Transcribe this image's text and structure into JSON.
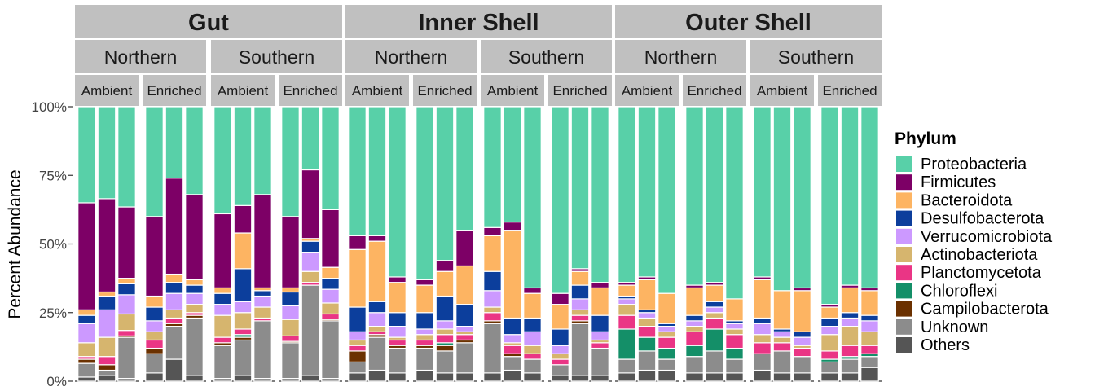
{
  "chart_data": {
    "type": "bar",
    "stacked": true,
    "ylabel": "Percent Abundance",
    "xlabel": "",
    "ylim": [
      0,
      100
    ],
    "yticks": [
      "0%",
      "25%",
      "50%",
      "75%",
      "100%"
    ],
    "legend": {
      "title": "Phylum",
      "placement": "right",
      "entries": [
        "Proteobacteria",
        "Firmicutes",
        "Bacteroidota",
        "Desulfobacterota",
        "Verrucomicrobiota",
        "Actinobacteriota",
        "Planctomycetota",
        "Chloroflexi",
        "Campilobacterota",
        "Unknown",
        "Others"
      ]
    },
    "colors": {
      "Proteobacteria": "#58d0a8",
      "Firmicutes": "#7d0066",
      "Bacteroidota": "#fdb462",
      "Desulfobacterota": "#0c3e9c",
      "Verrucomicrobiota": "#cc99ff",
      "Actinobacteriota": "#d6b56e",
      "Planctomycetota": "#ea3585",
      "Chloroflexi": "#148f68",
      "Campilobacterota": "#6b3100",
      "Unknown": "#8c8c8c",
      "Others": "#555555"
    },
    "stack_order": [
      "Others",
      "Unknown",
      "Campilobacterota",
      "Chloroflexi",
      "Planctomycetota",
      "Actinobacteriota",
      "Verrucomicrobiota",
      "Desulfobacterota",
      "Bacteroidota",
      "Firmicutes",
      "Proteobacteria"
    ],
    "panels": [
      {
        "tissue": "Gut",
        "site": "Northern",
        "treatment": "Ambient",
        "bars": [
          {
            "Others": 1.5,
            "Unknown": 5,
            "Campilobacterota": 1.5,
            "Chloroflexi": 0,
            "Planctomycetota": 1,
            "Actinobacteriota": 5,
            "Verrucomicrobiota": 7,
            "Desulfobacterota": 3,
            "Bacteroidota": 2,
            "Firmicutes": 39,
            "Proteobacteria": 35
          },
          {
            "Others": 2,
            "Unknown": 2,
            "Campilobacterota": 2,
            "Chloroflexi": 0,
            "Planctomycetota": 3,
            "Actinobacteriota": 7,
            "Verrucomicrobiota": 10,
            "Desulfobacterota": 5,
            "Bacteroidota": 1.5,
            "Firmicutes": 34,
            "Proteobacteria": 33.5
          },
          {
            "Others": 1,
            "Unknown": 15,
            "Campilobacterota": 0.5,
            "Chloroflexi": 0,
            "Planctomycetota": 2,
            "Actinobacteriota": 6,
            "Verrucomicrobiota": 7,
            "Desulfobacterota": 4,
            "Bacteroidota": 2,
            "Firmicutes": 26,
            "Proteobacteria": 36.5
          }
        ]
      },
      {
        "tissue": "Gut",
        "site": "Northern",
        "treatment": "Enriched",
        "bars": [
          {
            "Others": 3,
            "Unknown": 7,
            "Campilobacterota": 2,
            "Chloroflexi": 0,
            "Planctomycetota": 3,
            "Actinobacteriota": 3,
            "Verrucomicrobiota": 4,
            "Desulfobacterota": 5,
            "Bacteroidota": 4,
            "Firmicutes": 29,
            "Proteobacteria": 40
          },
          {
            "Others": 8,
            "Unknown": 12,
            "Campilobacterota": 1,
            "Chloroflexi": 0,
            "Planctomycetota": 2,
            "Actinobacteriota": 3,
            "Verrucomicrobiota": 6,
            "Desulfobacterota": 4,
            "Bacteroidota": 3,
            "Firmicutes": 35,
            "Proteobacteria": 26
          },
          {
            "Others": 2,
            "Unknown": 21,
            "Campilobacterota": 1,
            "Chloroflexi": 0,
            "Planctomycetota": 1,
            "Actinobacteriota": 3,
            "Verrucomicrobiota": 4,
            "Desulfobacterota": 3,
            "Bacteroidota": 2,
            "Firmicutes": 31,
            "Proteobacteria": 32
          }
        ]
      },
      {
        "tissue": "Gut",
        "site": "Southern",
        "treatment": "Ambient",
        "bars": [
          {
            "Others": 1,
            "Unknown": 12,
            "Campilobacterota": 1,
            "Chloroflexi": 0,
            "Planctomycetota": 2,
            "Actinobacteriota": 8,
            "Verrucomicrobiota": 4,
            "Desulfobacterota": 4,
            "Bacteroidota": 2,
            "Firmicutes": 27,
            "Proteobacteria": 39
          },
          {
            "Others": 2,
            "Unknown": 13,
            "Campilobacterota": 1,
            "Chloroflexi": 1,
            "Planctomycetota": 2,
            "Actinobacteriota": 6,
            "Verrucomicrobiota": 4,
            "Desulfobacterota": 12,
            "Bacteroidota": 13,
            "Firmicutes": 10,
            "Proteobacteria": 36
          },
          {
            "Others": 1,
            "Unknown": 21,
            "Campilobacterota": 0,
            "Chloroflexi": 0,
            "Planctomycetota": 1,
            "Actinobacteriota": 4,
            "Verrucomicrobiota": 4,
            "Desulfobacterota": 2,
            "Bacteroidota": 1,
            "Firmicutes": 34,
            "Proteobacteria": 32
          }
        ]
      },
      {
        "tissue": "Gut",
        "site": "Southern",
        "treatment": "Enriched",
        "bars": [
          {
            "Others": 1,
            "Unknown": 13,
            "Campilobacterota": 0.5,
            "Chloroflexi": 0,
            "Planctomycetota": 2,
            "Actinobacteriota": 6,
            "Verrucomicrobiota": 5,
            "Desulfobacterota": 5,
            "Bacteroidota": 1.5,
            "Firmicutes": 26,
            "Proteobacteria": 40
          },
          {
            "Others": 2,
            "Unknown": 33,
            "Campilobacterota": 0,
            "Chloroflexi": 0,
            "Planctomycetota": 1,
            "Actinobacteriota": 4,
            "Verrucomicrobiota": 7,
            "Desulfobacterota": 4,
            "Bacteroidota": 1,
            "Firmicutes": 25,
            "Proteobacteria": 23
          },
          {
            "Others": 1,
            "Unknown": 21,
            "Campilobacterota": 0.5,
            "Chloroflexi": 0,
            "Planctomycetota": 2,
            "Actinobacteriota": 4,
            "Verrucomicrobiota": 5,
            "Desulfobacterota": 4,
            "Bacteroidota": 4,
            "Firmicutes": 21,
            "Proteobacteria": 37.5
          }
        ]
      },
      {
        "tissue": "Inner Shell",
        "site": "Northern",
        "treatment": "Ambient",
        "bars": [
          {
            "Others": 3,
            "Unknown": 4,
            "Campilobacterota": 4,
            "Chloroflexi": 0,
            "Planctomycetota": 2,
            "Actinobacteriota": 2,
            "Verrucomicrobiota": 3,
            "Desulfobacterota": 9,
            "Bacteroidota": 21,
            "Firmicutes": 5,
            "Proteobacteria": 47
          },
          {
            "Others": 4,
            "Unknown": 12,
            "Campilobacterota": 1,
            "Chloroflexi": 0,
            "Planctomycetota": 1,
            "Actinobacteriota": 2,
            "Verrucomicrobiota": 5,
            "Desulfobacterota": 4,
            "Bacteroidota": 22,
            "Firmicutes": 2,
            "Proteobacteria": 47
          },
          {
            "Others": 3,
            "Unknown": 9,
            "Campilobacterota": 1,
            "Chloroflexi": 0,
            "Planctomycetota": 2,
            "Actinobacteriota": 1,
            "Verrucomicrobiota": 4,
            "Desulfobacterota": 5,
            "Bacteroidota": 11,
            "Firmicutes": 2,
            "Proteobacteria": 62
          }
        ]
      },
      {
        "tissue": "Inner Shell",
        "site": "Northern",
        "treatment": "Enriched",
        "bars": [
          {
            "Others": 4,
            "Unknown": 8,
            "Campilobacterota": 1,
            "Chloroflexi": 0,
            "Planctomycetota": 2,
            "Actinobacteriota": 2,
            "Verrucomicrobiota": 2,
            "Desulfobacterota": 6,
            "Bacteroidota": 10,
            "Firmicutes": 2,
            "Proteobacteria": 63
          },
          {
            "Others": 3,
            "Unknown": 8,
            "Campilobacterota": 2,
            "Chloroflexi": 1,
            "Planctomycetota": 3,
            "Actinobacteriota": 2,
            "Verrucomicrobiota": 3,
            "Desulfobacterota": 9,
            "Bacteroidota": 9,
            "Firmicutes": 4,
            "Proteobacteria": 56
          },
          {
            "Others": 3,
            "Unknown": 11,
            "Campilobacterota": 1,
            "Chloroflexi": 0,
            "Planctomycetota": 2,
            "Actinobacteriota": 1,
            "Verrucomicrobiota": 2,
            "Desulfobacterota": 8,
            "Bacteroidota": 14,
            "Firmicutes": 13,
            "Proteobacteria": 45
          }
        ]
      },
      {
        "tissue": "Inner Shell",
        "site": "Southern",
        "treatment": "Ambient",
        "bars": [
          {
            "Others": 3,
            "Unknown": 18,
            "Campilobacterota": 1,
            "Chloroflexi": 0,
            "Planctomycetota": 3,
            "Actinobacteriota": 2,
            "Verrucomicrobiota": 6,
            "Desulfobacterota": 7,
            "Bacteroidota": 13,
            "Firmicutes": 3,
            "Proteobacteria": 44
          },
          {
            "Others": 4,
            "Unknown": 5,
            "Campilobacterota": 1,
            "Chloroflexi": 0,
            "Planctomycetota": 3,
            "Actinobacteriota": 1,
            "Verrucomicrobiota": 3,
            "Desulfobacterota": 6,
            "Bacteroidota": 32,
            "Firmicutes": 3,
            "Proteobacteria": 42
          },
          {
            "Others": 3,
            "Unknown": 5,
            "Campilobacterota": 0,
            "Chloroflexi": 0,
            "Planctomycetota": 2,
            "Actinobacteriota": 3,
            "Verrucomicrobiota": 5,
            "Desulfobacterota": 5,
            "Bacteroidota": 9,
            "Firmicutes": 2,
            "Proteobacteria": 66
          }
        ]
      },
      {
        "tissue": "Inner Shell",
        "site": "Southern",
        "treatment": "Enriched",
        "bars": [
          {
            "Others": 2,
            "Unknown": 4,
            "Campilobacterota": 0,
            "Chloroflexi": 0,
            "Planctomycetota": 2,
            "Actinobacteriota": 2,
            "Verrucomicrobiota": 3,
            "Desulfobacterota": 6,
            "Bacteroidota": 9,
            "Firmicutes": 4,
            "Proteobacteria": 68
          },
          {
            "Others": 2,
            "Unknown": 19,
            "Campilobacterota": 1,
            "Chloroflexi": 0,
            "Planctomycetota": 2,
            "Actinobacteriota": 2,
            "Verrucomicrobiota": 4,
            "Desulfobacterota": 5,
            "Bacteroidota": 5,
            "Firmicutes": 1,
            "Proteobacteria": 59
          },
          {
            "Others": 2,
            "Unknown": 10,
            "Campilobacterota": 0,
            "Chloroflexi": 0,
            "Planctomycetota": 2,
            "Actinobacteriota": 1,
            "Verrucomicrobiota": 3,
            "Desulfobacterota": 6,
            "Bacteroidota": 10,
            "Firmicutes": 2,
            "Proteobacteria": 64
          }
        ]
      },
      {
        "tissue": "Outer Shell",
        "site": "Northern",
        "treatment": "Ambient",
        "bars": [
          {
            "Others": 3,
            "Unknown": 5,
            "Campilobacterota": 0,
            "Chloroflexi": 11,
            "Planctomycetota": 5,
            "Actinobacteriota": 4,
            "Verrucomicrobiota": 2,
            "Desulfobacterota": 1,
            "Bacteroidota": 4,
            "Firmicutes": 1,
            "Proteobacteria": 64
          },
          {
            "Others": 4,
            "Unknown": 7,
            "Campilobacterota": 0,
            "Chloroflexi": 5,
            "Planctomycetota": 4,
            "Actinobacteriota": 3,
            "Verrucomicrobiota": 2,
            "Desulfobacterota": 1,
            "Bacteroidota": 11,
            "Firmicutes": 1,
            "Proteobacteria": 62
          },
          {
            "Others": 4,
            "Unknown": 4,
            "Campilobacterota": 0,
            "Chloroflexi": 4,
            "Planctomycetota": 4,
            "Actinobacteriota": 2,
            "Verrucomicrobiota": 2,
            "Desulfobacterota": 1,
            "Bacteroidota": 11,
            "Firmicutes": 0,
            "Proteobacteria": 68
          }
        ]
      },
      {
        "tissue": "Outer Shell",
        "site": "Northern",
        "treatment": "Enriched",
        "bars": [
          {
            "Others": 3,
            "Unknown": 6,
            "Campilobacterota": 0,
            "Chloroflexi": 4,
            "Planctomycetota": 5,
            "Actinobacteriota": 2,
            "Verrucomicrobiota": 2,
            "Desulfobacterota": 2,
            "Bacteroidota": 10,
            "Firmicutes": 1,
            "Proteobacteria": 65
          },
          {
            "Others": 3,
            "Unknown": 8,
            "Campilobacterota": 0,
            "Chloroflexi": 8,
            "Planctomycetota": 4,
            "Actinobacteriota": 2,
            "Verrucomicrobiota": 2,
            "Desulfobacterota": 2,
            "Bacteroidota": 6,
            "Firmicutes": 1,
            "Proteobacteria": 64
          },
          {
            "Others": 3,
            "Unknown": 5,
            "Campilobacterota": 0,
            "Chloroflexi": 4,
            "Planctomycetota": 5,
            "Actinobacteriota": 2,
            "Verrucomicrobiota": 2,
            "Desulfobacterota": 1,
            "Bacteroidota": 8,
            "Firmicutes": 0,
            "Proteobacteria": 70
          }
        ]
      },
      {
        "tissue": "Outer Shell",
        "site": "Southern",
        "treatment": "Ambient",
        "bars": [
          {
            "Others": 4,
            "Unknown": 6,
            "Campilobacterota": 0,
            "Chloroflexi": 0,
            "Planctomycetota": 4,
            "Actinobacteriota": 3,
            "Verrucomicrobiota": 4,
            "Desulfobacterota": 2,
            "Bacteroidota": 14,
            "Firmicutes": 1,
            "Proteobacteria": 62
          },
          {
            "Others": 3,
            "Unknown": 8,
            "Campilobacterota": 0,
            "Chloroflexi": 0,
            "Planctomycetota": 3,
            "Actinobacteriota": 2,
            "Verrucomicrobiota": 2,
            "Desulfobacterota": 1,
            "Bacteroidota": 14,
            "Firmicutes": 0,
            "Proteobacteria": 67
          },
          {
            "Others": 3,
            "Unknown": 6,
            "Campilobacterota": 0,
            "Chloroflexi": 0,
            "Planctomycetota": 3,
            "Actinobacteriota": 1,
            "Verrucomicrobiota": 3,
            "Desulfobacterota": 2,
            "Bacteroidota": 15,
            "Firmicutes": 1,
            "Proteobacteria": 66
          }
        ]
      },
      {
        "tissue": "Outer Shell",
        "site": "Southern",
        "treatment": "Enriched",
        "bars": [
          {
            "Others": 3,
            "Unknown": 4,
            "Campilobacterota": 0,
            "Chloroflexi": 1,
            "Planctomycetota": 3,
            "Actinobacteriota": 6,
            "Verrucomicrobiota": 3,
            "Desulfobacterota": 3,
            "Bacteroidota": 4,
            "Firmicutes": 1,
            "Proteobacteria": 72
          },
          {
            "Others": 3,
            "Unknown": 5,
            "Campilobacterota": 0,
            "Chloroflexi": 1,
            "Planctomycetota": 4,
            "Actinobacteriota": 7,
            "Verrucomicrobiota": 3,
            "Desulfobacterota": 2,
            "Bacteroidota": 9,
            "Firmicutes": 1,
            "Proteobacteria": 65
          },
          {
            "Others": 5,
            "Unknown": 4,
            "Campilobacterota": 0,
            "Chloroflexi": 1,
            "Planctomycetota": 3,
            "Actinobacteriota": 5,
            "Verrucomicrobiota": 4,
            "Desulfobacterota": 2,
            "Bacteroidota": 9,
            "Firmicutes": 1,
            "Proteobacteria": 66
          }
        ]
      }
    ]
  }
}
